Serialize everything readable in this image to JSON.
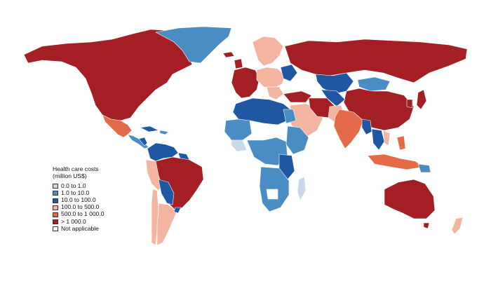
{
  "legend": {
    "title_line1": "Health care costs",
    "title_line2": "(million US$)",
    "items": [
      {
        "label": "0.0 to 1.0",
        "color": "#c9d9ea"
      },
      {
        "label": "1.0 to 10.0",
        "color": "#4a8dc4"
      },
      {
        "label": "10.0 to 100.0",
        "color": "#1f57a3"
      },
      {
        "label": "100.0 to 500.0",
        "color": "#f4b5a0"
      },
      {
        "label": "500.0 to 1 000.0",
        "color": "#e56a4a"
      },
      {
        "label": "> 1 000.0",
        "color": "#a31f24"
      },
      {
        "label": "Not applicable",
        "color": "#ffffff"
      }
    ]
  },
  "colors": {
    "c0": "#c9d9ea",
    "c1": "#4a8dc4",
    "c2": "#1f57a3",
    "c3": "#f4b5a0",
    "c4": "#e56a4a",
    "c5": "#a31f24",
    "na": "#ffffff"
  }
}
